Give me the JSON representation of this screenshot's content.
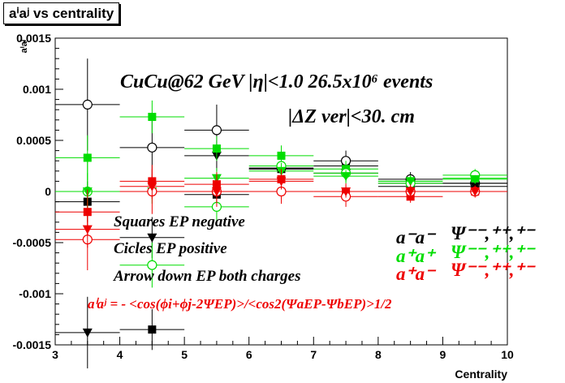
{
  "title": "aⁱaʲ vs centrality",
  "chart_data": {
    "type": "scatter",
    "xlabel": "Centrality",
    "ylabel": "aⁱaʲ",
    "xlim": [
      3,
      10
    ],
    "ylim": [
      -0.0015,
      0.0015
    ],
    "x_ticks": [
      "3",
      "4",
      "5",
      "6",
      "7",
      "8",
      "9",
      "10"
    ],
    "y_ticks": [
      "-0.0015",
      "-0.001",
      "-0.0005",
      "0",
      "0.0005",
      "0.001",
      "0.0015"
    ],
    "colors": {
      "black": "#000000",
      "green": "#00dd00",
      "red": "#ee0000"
    },
    "annotations": {
      "header1": "CuCu@62 GeV |η|<1.0 26.5x10⁶ events",
      "header2": "|ΔZ ver|<30. cm",
      "legend1": "Squares EP negative",
      "legend2": "Cicles EP positive",
      "legend3": "Arrow down EP both charges",
      "formula": "aⁱaʲ = - <cos(ϕi+ϕj-2ΨEP)>/<cos2(ΨaEP-ΨbEP)>1/2",
      "pair1": "a⁻a⁻",
      "pair2": "a⁺a⁺",
      "pair3": "a⁺a⁻",
      "psi": "Ψ⁻⁻,⁺⁺,⁺⁻"
    },
    "series": [
      {
        "color": "black",
        "marker": "square",
        "points": [
          [
            3.5,
            -0.0001,
            0.0002
          ],
          [
            4.5,
            -0.00135,
            0.0002
          ],
          [
            5.5,
            -3e-05,
            0.00012
          ],
          [
            6.5,
            0.00022,
            9e-05
          ],
          [
            7.5,
            0.00025,
            7e-05
          ],
          [
            8.5,
            5e-05,
            5e-05
          ],
          [
            9.5,
            8e-05,
            5e-05
          ]
        ]
      },
      {
        "color": "black",
        "marker": "circle",
        "points": [
          [
            3.5,
            0.00085,
            0.00045
          ],
          [
            4.5,
            0.00043,
            0.0003
          ],
          [
            5.5,
            0.0006,
            0.00025
          ],
          [
            6.5,
            0.00023,
            0.00012
          ],
          [
            7.5,
            0.0003,
            0.0001
          ],
          [
            8.5,
            0.00012,
            7e-05
          ],
          [
            9.5,
            8e-05,
            6e-05
          ]
        ]
      },
      {
        "color": "black",
        "marker": "triangle",
        "points": [
          [
            3.5,
            -0.00138,
            0.00035
          ],
          [
            4.5,
            -0.00045,
            0.0002
          ],
          [
            5.5,
            0.00035,
            0.00015
          ],
          [
            6.5,
            0.00022,
            0.0001
          ],
          [
            7.5,
            0.00018,
            8e-05
          ],
          [
            8.5,
            8e-05,
            5e-05
          ],
          [
            9.5,
            5e-05,
            5e-05
          ]
        ]
      },
      {
        "color": "green",
        "marker": "square",
        "points": [
          [
            3.5,
            0.00033,
            0.00022
          ],
          [
            4.5,
            0.00073,
            0.00016
          ],
          [
            5.5,
            0.00042,
            0.00012
          ],
          [
            6.5,
            0.00035,
            0.0001
          ],
          [
            7.5,
            0.00022,
            8e-05
          ],
          [
            8.5,
            0.0001,
            6e-05
          ],
          [
            9.5,
            0.00013,
            5e-05
          ]
        ]
      },
      {
        "color": "green",
        "marker": "circle",
        "points": [
          [
            3.5,
            0.0,
            0.0003
          ],
          [
            4.5,
            -0.00072,
            0.00022
          ],
          [
            5.5,
            -0.00015,
            0.00015
          ],
          [
            6.5,
            0.00025,
            0.00012
          ],
          [
            7.5,
            0.00018,
            0.0001
          ],
          [
            8.5,
            8e-05,
            7e-05
          ],
          [
            9.5,
            0.00016,
            6e-05
          ]
        ]
      },
      {
        "color": "green",
        "marker": "triangle",
        "points": [
          [
            3.5,
            0.0,
            0.00018
          ],
          [
            4.5,
            0.0,
            0.00012
          ],
          [
            5.5,
            0.00013,
            0.0001
          ],
          [
            6.5,
            0.0002,
            8e-05
          ],
          [
            7.5,
            0.00015,
            6e-05
          ],
          [
            8.5,
            0.0001,
            5e-05
          ],
          [
            9.5,
            0.00012,
            4e-05
          ]
        ]
      },
      {
        "color": "red",
        "marker": "square",
        "points": [
          [
            3.5,
            -0.0002,
            0.00022
          ],
          [
            4.5,
            0.0001,
            0.00016
          ],
          [
            5.5,
            7e-05,
            0.00012
          ],
          [
            6.5,
            0.00012,
            0.0001
          ],
          [
            7.5,
            0.0,
            8e-05
          ],
          [
            8.5,
            -5e-05,
            6e-05
          ],
          [
            9.5,
            0.0,
            5e-05
          ]
        ]
      },
      {
        "color": "red",
        "marker": "circle",
        "points": [
          [
            3.5,
            -0.00047,
            0.0003
          ],
          [
            4.5,
            0.0,
            0.00022
          ],
          [
            5.5,
            0.0,
            0.00015
          ],
          [
            6.5,
            0.0,
            0.00012
          ],
          [
            7.5,
            -5e-05,
            0.0001
          ],
          [
            8.5,
            0.0,
            7e-05
          ],
          [
            9.5,
            0.0,
            6e-05
          ]
        ]
      },
      {
        "color": "red",
        "marker": "triangle",
        "points": [
          [
            3.5,
            -0.00037,
            0.00018
          ],
          [
            4.5,
            5e-05,
            0.00012
          ],
          [
            5.5,
            0.0,
            0.0001
          ],
          [
            6.5,
            0.0001,
            8e-05
          ],
          [
            7.5,
            0.0,
            6e-05
          ],
          [
            8.5,
            0.0,
            5e-05
          ],
          [
            9.5,
            0.0,
            4e-05
          ]
        ]
      }
    ]
  }
}
